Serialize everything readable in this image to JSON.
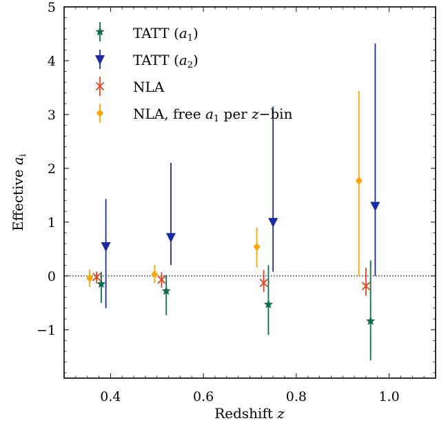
{
  "chart_data": {
    "type": "scatter",
    "title": "",
    "xlabel": "Redshift",
    "xlabel_var": "z",
    "ylabel": "Effective",
    "ylabel_var": "a",
    "ylabel_sub": "i",
    "xlim": [
      0.3,
      1.1
    ],
    "ylim": [
      -1.9,
      5.0
    ],
    "xticks": [
      0.4,
      0.6,
      0.8,
      1.0
    ],
    "xtick_labels": [
      "0.4",
      "0.6",
      "0.8",
      "1.0"
    ],
    "yticks": [
      -1,
      0,
      1,
      2,
      3,
      4,
      5
    ],
    "ytick_labels": [
      "−1",
      "0",
      "1",
      "2",
      "3",
      "4",
      "5"
    ],
    "reference_line": {
      "y": 0,
      "style": "dotted"
    },
    "grid": false,
    "legend_position": "top-left",
    "series": [
      {
        "name": "TATT",
        "name_var": "a",
        "name_sub": "1",
        "marker": "star",
        "color": "#0e6b4f",
        "x": [
          0.38,
          0.52,
          0.74,
          0.96
        ],
        "y": [
          -0.15,
          -0.28,
          -0.53,
          -0.84
        ],
        "err_low": [
          0.35,
          0.45,
          0.57,
          0.73
        ],
        "err_high": [
          0.22,
          0.3,
          0.73,
          1.13
        ]
      },
      {
        "name": "TATT",
        "name_var": "a",
        "name_sub": "2",
        "marker": "triangle-down",
        "color": "#1a2ba3",
        "x": [
          0.39,
          0.53,
          0.75,
          0.97
        ],
        "y": [
          0.55,
          0.72,
          1.0,
          1.3
        ],
        "err_low": [
          1.15,
          0.52,
          0.92,
          1.3
        ],
        "err_high": [
          0.88,
          1.38,
          2.15,
          3.02
        ]
      },
      {
        "name": "NLA",
        "marker": "x",
        "color": "#e8401a",
        "x": [
          0.37,
          0.51,
          0.73,
          0.95
        ],
        "y": [
          -0.02,
          -0.07,
          -0.13,
          -0.19
        ],
        "err_low": [
          0.12,
          0.15,
          0.17,
          0.18
        ],
        "err_high": [
          0.1,
          0.14,
          0.24,
          0.34
        ]
      },
      {
        "name": "NLA, free",
        "name_var": "a",
        "name_sub": "1",
        "name_suffix": "per",
        "name_var2": "z",
        "name_tail": "−bin",
        "marker": "diamond",
        "color": "#ffa500",
        "x": [
          0.355,
          0.495,
          0.715,
          0.935
        ],
        "y": [
          -0.04,
          0.03,
          0.54,
          1.77
        ],
        "err_low": [
          0.17,
          0.17,
          0.38,
          1.77
        ],
        "err_high": [
          0.16,
          0.18,
          0.36,
          1.67
        ]
      }
    ]
  }
}
